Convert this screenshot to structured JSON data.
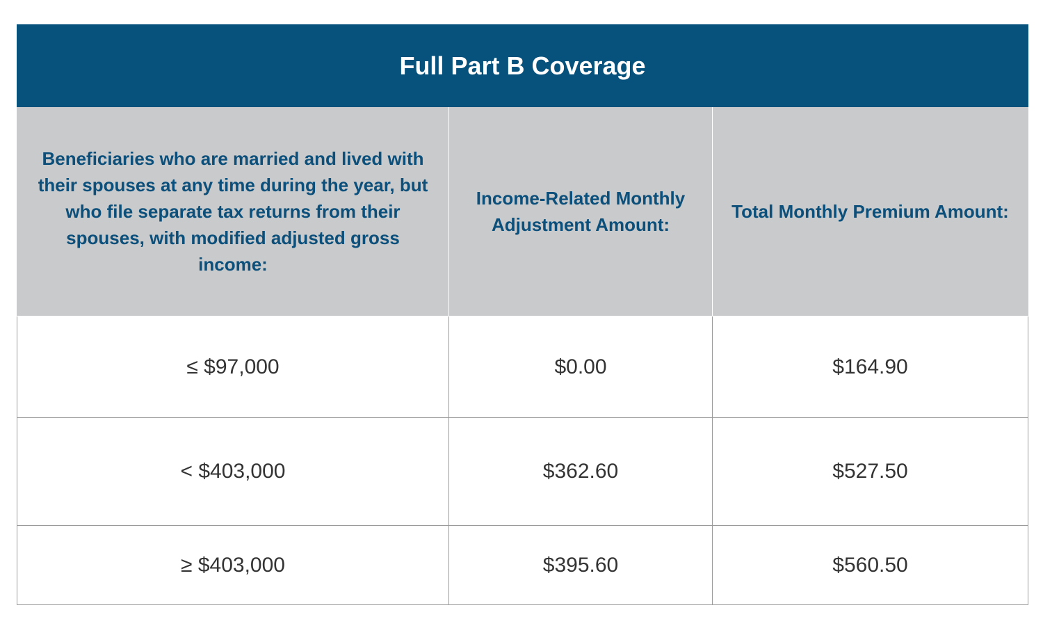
{
  "table": {
    "title": "Full Part B Coverage",
    "headers": [
      "Beneficiaries who are married and lived with their spouses at any time during the year, but who file separate tax returns from their spouses, with modified adjusted gross income:",
      "Income-Related Monthly Adjustment Amount:",
      "Total Monthly Premium Amount:"
    ],
    "rows": [
      [
        "≤ $97,000",
        "$0.00",
        "$164.90"
      ],
      [
        "< $403,000",
        "$362.60",
        "$527.50"
      ],
      [
        "≥ $403,000",
        "$395.60",
        "$560.50"
      ]
    ]
  },
  "colors": {
    "title_bg": "#07527c",
    "header_bg": "#c8cacc",
    "header_text": "#0b4f7a"
  }
}
